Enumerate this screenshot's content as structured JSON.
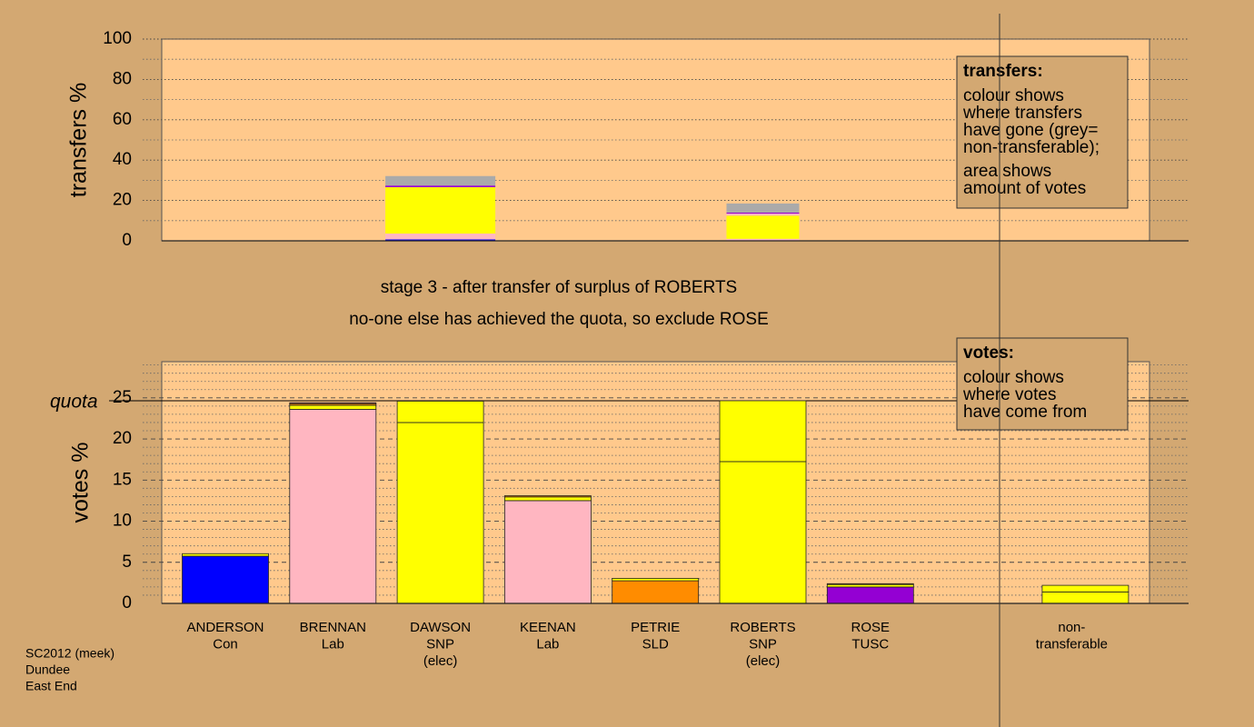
{
  "chart_data": [
    {
      "type": "stacked_bar",
      "ylabel": "transfers %",
      "ylim": [
        0,
        100
      ],
      "yticks": [
        0,
        20,
        40,
        60,
        80,
        100
      ],
      "minor_yticks": [
        10,
        30,
        50,
        70,
        90
      ],
      "stacks": [
        null,
        null,
        [
          {
            "value": 0.7,
            "color": "#0000ff"
          },
          {
            "value": 2.9,
            "color": "#ffb6c1"
          },
          {
            "value": 23,
            "color": "#ffff00"
          },
          {
            "value": 0.8,
            "color": "#9400d3"
          },
          {
            "value": 4.7,
            "color": "#aaaaaa"
          }
        ],
        null,
        null,
        [
          {
            "value": 1.0,
            "color": "#ffb6c1"
          },
          {
            "value": 11.5,
            "color": "#ffff00"
          },
          {
            "value": 1.0,
            "color": "#ffb6c1"
          },
          {
            "value": 0.5,
            "color": "#9400d3"
          },
          {
            "value": 4.5,
            "color": "#aaaaaa"
          }
        ],
        null,
        null,
        null
      ],
      "legend_box": {
        "title": "transfers:",
        "paragraphs": [
          [
            "colour shows",
            "where transfers",
            "have gone (grey=",
            "non-transferable);"
          ],
          [
            "area shows",
            "amount of votes"
          ]
        ]
      }
    },
    {
      "type": "stacked_bar",
      "ylabel": "votes %",
      "ylim": [
        0,
        29.4
      ],
      "yticks": [
        0,
        5,
        10,
        15,
        20,
        25
      ],
      "minor_yticks": [
        1,
        2,
        3,
        4,
        6,
        7,
        8,
        9,
        11,
        12,
        13,
        14,
        16,
        17,
        18,
        19,
        21,
        22,
        23,
        24,
        26,
        27,
        28,
        29
      ],
      "quota": {
        "value": 24.65,
        "label": "quota"
      },
      "categories": [
        [
          "ANDERSON",
          "Con"
        ],
        [
          "BRENNAN",
          "Lab"
        ],
        [
          "DAWSON",
          "SNP",
          "(elec)"
        ],
        [
          "KEENAN",
          "Lab"
        ],
        [
          "PETRIE",
          "SLD"
        ],
        [
          "ROBERTS",
          "SNP",
          "(elec)"
        ],
        [
          "ROSE",
          "TUSC"
        ],
        null,
        [
          "non-",
          "transferable"
        ]
      ],
      "stacks": [
        [
          {
            "value": 5.75,
            "color": "#0000ff"
          },
          {
            "value": 0.3,
            "color": "#ffff00"
          }
        ],
        [
          {
            "value": 23.6,
            "color": "#ffb6c1"
          },
          {
            "value": 0.5,
            "color": "#ffff00"
          },
          {
            "value": 0.2,
            "color": "#ff8c00"
          },
          {
            "value": 0.1,
            "color": "#9400d3"
          }
        ],
        [
          {
            "value": 22.0,
            "color": "#ffff00"
          },
          {
            "value": 2.6,
            "color": "#ffff00"
          }
        ],
        [
          {
            "value": 12.5,
            "color": "#ffb6c1"
          },
          {
            "value": 0.45,
            "color": "#ffff00"
          },
          {
            "value": 0.15,
            "color": "#ff8c00"
          }
        ],
        [
          {
            "value": 2.75,
            "color": "#ff8c00"
          },
          {
            "value": 0.3,
            "color": "#ffff00"
          }
        ],
        [
          {
            "value": 17.25,
            "color": "#ffff00"
          },
          {
            "value": 7.4,
            "color": "#ffff00"
          }
        ],
        [
          {
            "value": 2.0,
            "color": "#9400d3"
          },
          {
            "value": 0.3,
            "color": "#ffff00"
          },
          {
            "value": 0.1,
            "color": "#ff8c00"
          }
        ],
        null,
        [
          {
            "value": 1.4,
            "color": "#ffff00"
          },
          {
            "value": 0.8,
            "color": "#ffff00"
          }
        ]
      ],
      "legend_box": {
        "title": "votes:",
        "paragraphs": [
          [
            "colour shows",
            "where votes",
            "have come from"
          ]
        ]
      }
    }
  ],
  "stage_text": [
    "stage 3 - after transfer of surplus of ROBERTS",
    "no-one else has achieved the quota, so exclude ROSE"
  ],
  "footer": [
    "SC2012 (meek)",
    "Dundee",
    "East End"
  ]
}
